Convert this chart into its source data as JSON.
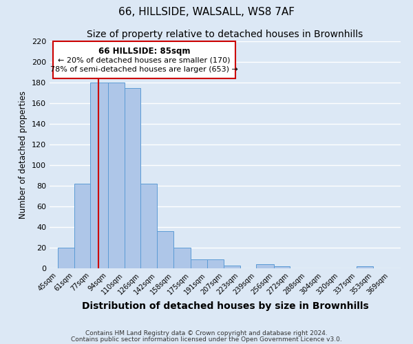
{
  "title1": "66, HILLSIDE, WALSALL, WS8 7AF",
  "title2": "Size of property relative to detached houses in Brownhills",
  "xlabel": "Distribution of detached houses by size in Brownhills",
  "ylabel": "Number of detached properties",
  "bar_left_edges": [
    45,
    61,
    77,
    94,
    110,
    126,
    142,
    158,
    175,
    191,
    207,
    223,
    239,
    256,
    272,
    288,
    304,
    320,
    337,
    353
  ],
  "bar_heights": [
    20,
    82,
    180,
    180,
    175,
    82,
    36,
    20,
    9,
    9,
    3,
    0,
    4,
    2,
    0,
    0,
    0,
    0,
    2,
    0
  ],
  "bar_widths": [
    16,
    16,
    17,
    16,
    16,
    16,
    16,
    17,
    16,
    16,
    16,
    16,
    17,
    16,
    16,
    16,
    16,
    17,
    16,
    16
  ],
  "tick_labels": [
    "45sqm",
    "61sqm",
    "77sqm",
    "94sqm",
    "110sqm",
    "126sqm",
    "142sqm",
    "158sqm",
    "175sqm",
    "191sqm",
    "207sqm",
    "223sqm",
    "239sqm",
    "256sqm",
    "272sqm",
    "288sqm",
    "304sqm",
    "320sqm",
    "337sqm",
    "353sqm",
    "369sqm"
  ],
  "tick_positions": [
    45,
    61,
    77,
    94,
    110,
    126,
    142,
    158,
    175,
    191,
    207,
    223,
    239,
    256,
    272,
    288,
    304,
    320,
    337,
    353,
    369
  ],
  "bar_color": "#aec6e8",
  "bar_edge_color": "#5b9bd5",
  "vline_x": 85,
  "vline_color": "#cc0000",
  "ylim": [
    0,
    220
  ],
  "yticks": [
    0,
    20,
    40,
    60,
    80,
    100,
    120,
    140,
    160,
    180,
    200,
    220
  ],
  "annotation_title": "66 HILLSIDE: 85sqm",
  "annotation_line1": "← 20% of detached houses are smaller (170)",
  "annotation_line2": "78% of semi-detached houses are larger (653) →",
  "footer1": "Contains HM Land Registry data © Crown copyright and database right 2024.",
  "footer2": "Contains public sector information licensed under the Open Government Licence v3.0.",
  "bg_color": "#dce8f5",
  "grid_color": "#ffffff",
  "title_fontsize": 11,
  "subtitle_fontsize": 10
}
